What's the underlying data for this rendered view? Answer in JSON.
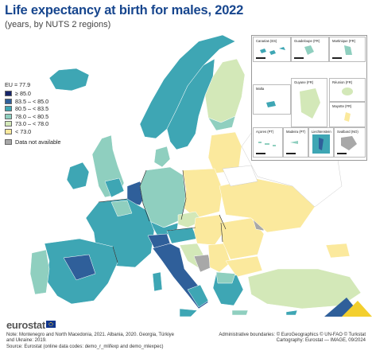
{
  "title": "Life expectancy at birth for males, 2022",
  "subtitle": "(years, by NUTS 2 regions)",
  "legend": {
    "eu": "EU = 77.9",
    "classes": [
      {
        "label": "≥ 85.0",
        "color": "#17256b"
      },
      {
        "label": "83.5 – < 85.0",
        "color": "#2f5f9a"
      },
      {
        "label": "80.5 – < 83.5",
        "color": "#3ea6b4"
      },
      {
        "label": "78.0 – < 80.5",
        "color": "#8fcfbf"
      },
      {
        "label": "73.0 – < 78.0",
        "color": "#d3e8b8"
      },
      {
        "label": "< 73.0",
        "color": "#fbe99d"
      }
    ],
    "na": {
      "label": "Data not available",
      "color": "#a8a8a8"
    }
  },
  "insets": [
    {
      "label": "Canarias (ES)"
    },
    {
      "label": "Guadeloupe (FR)"
    },
    {
      "label": "Martinique (FR)"
    },
    {
      "label": "Guyane (FR)"
    },
    {
      "label": "Réunion (FR)"
    },
    {
      "label": "Malta"
    },
    {
      "label": "Mayotte (FR)"
    },
    {
      "label": "Açores (PT)"
    },
    {
      "label": "Madeira (PT)"
    },
    {
      "label": "Liechtenstein"
    },
    {
      "label": "Svalbard (NO)"
    }
  ],
  "footer": {
    "logo": "eurostat",
    "note": "Note: Montenegro and North Macedonia, 2021. Albania, 2020. Georgia, Türkiye and Ukraine: 2019.",
    "source": "Source: Eurostat (online data codes: demo_r_mlifexp and demo_mlexpec)",
    "credits_1": "Administrative boundaries: © EuroGeographics © UN-FAO © Turkstat",
    "credits_2": "Cartography: Eurostat — IMAGE, 09/2024"
  }
}
